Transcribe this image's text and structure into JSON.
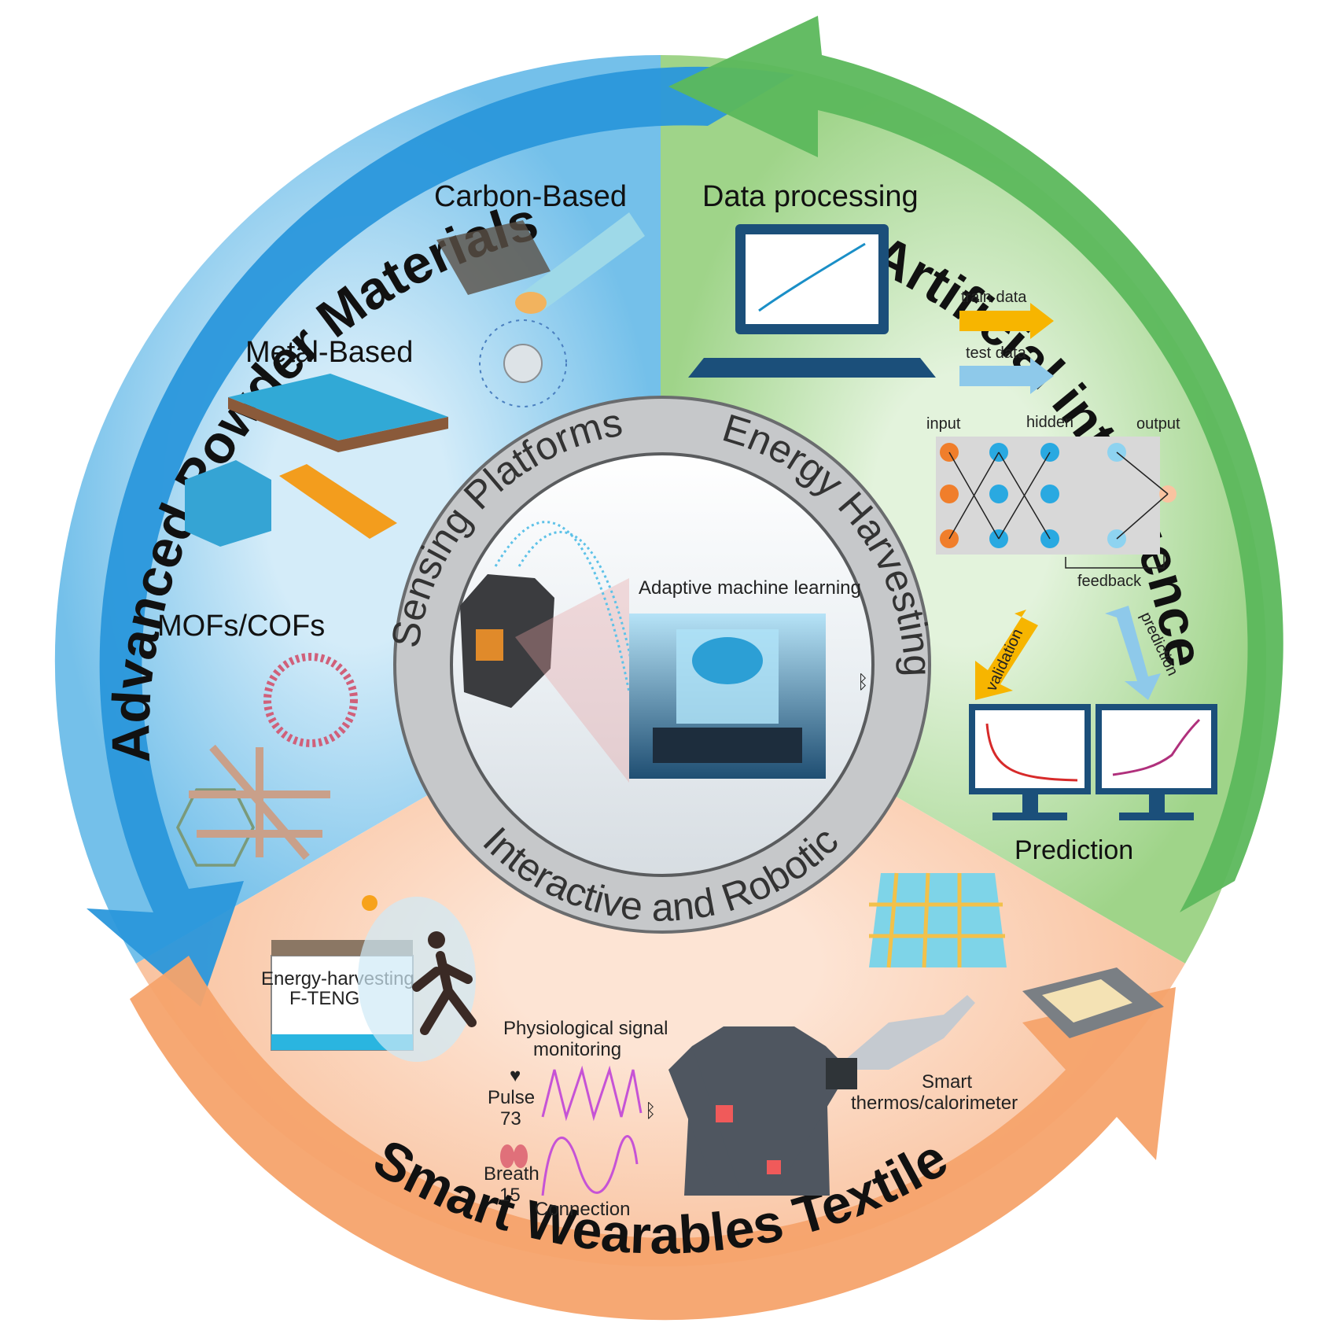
{
  "sections": {
    "powder": {
      "title": "Advanced Powder Materials",
      "carbon": "Carbon-Based",
      "metal": "Metal-Based",
      "mofs": "MOFs/COFs"
    },
    "ai": {
      "title": "Artificial intelligence",
      "data_processing": "Data processing",
      "train_data": "train  data",
      "test_data": "test data",
      "input": "input",
      "hidden": "hidden",
      "output": "output",
      "feedback": "feedback",
      "validation": "validation",
      "prediction_arrow": "prediction",
      "prediction": "Prediction"
    },
    "textile": {
      "title": "Smart Wearables Textile",
      "energy_harvesting": "Energy-harvesting",
      "fteng": "F-TENG",
      "physio_1": "Physiological signal",
      "physio_2": "monitoring",
      "pulse": "Pulse",
      "pulse_value": "73",
      "breath": "Breath",
      "breath_value": "15",
      "connection": "Connection",
      "smart": "Smart",
      "thermos": "thermos/calorimeter"
    },
    "center": {
      "sensing": "Sensing Platforms",
      "energy": "Energy Harvesting",
      "interactive": "Interactive and Robotic",
      "adaptive": "Adaptive machine learning"
    }
  },
  "colors": {
    "blue": "#1d8fd6",
    "green": "#5cb85c",
    "orange": "#f6a36b",
    "yellow_arrow": "#f7b500",
    "lightblue_arrow": "#8ec9ea"
  }
}
